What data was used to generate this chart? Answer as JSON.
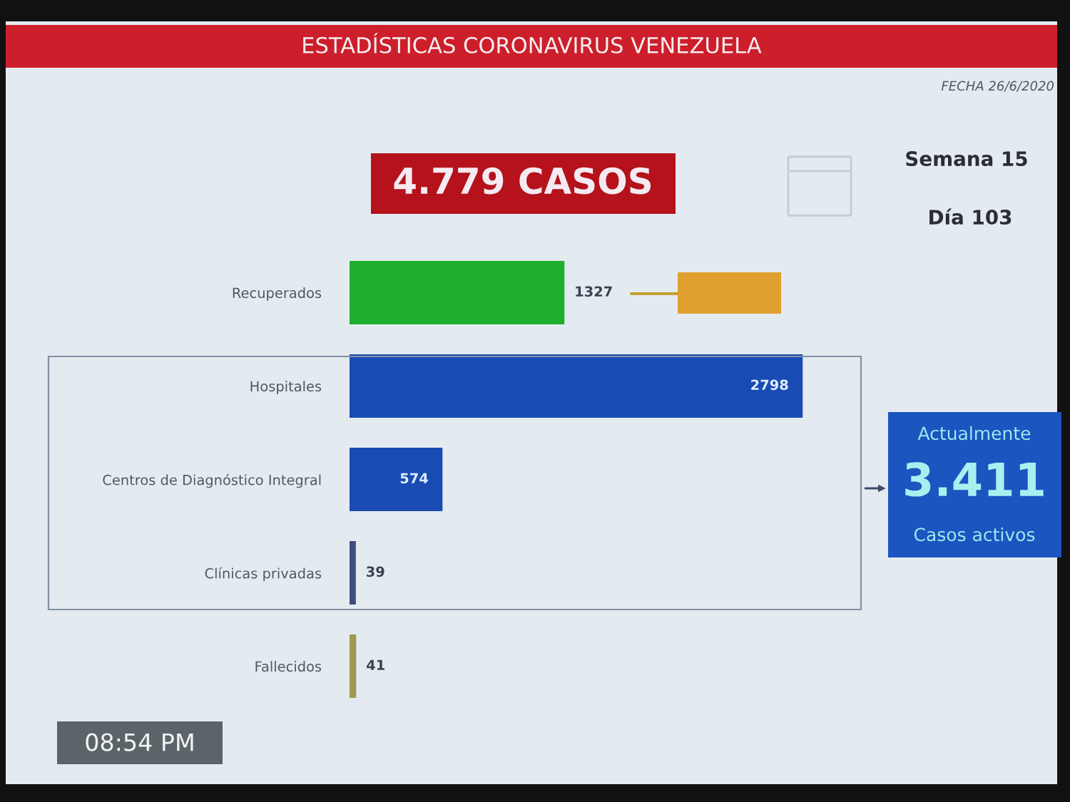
{
  "chart_data": {
    "type": "bar",
    "orientation": "horizontal",
    "title": "ESTADÍSTICAS CORONAVIRUS VENEZUELA",
    "categories": [
      "Recuperados",
      "Hospitales",
      "Centros de Diagnóstico Integral",
      "Clínicas privadas",
      "Fallecidos"
    ],
    "values": [
      1327,
      2798,
      574,
      39,
      41
    ],
    "colors": [
      "#1fae2e",
      "#1a4bb5",
      "#1a4bb5",
      "#3d4f7a",
      "#a09a50"
    ],
    "data_labels": true,
    "tick_labels": "y",
    "annotations": [
      "FECHA 26/6/2020",
      "4.779 CASOS",
      "Semana 15",
      "Día 103",
      "Actualmente",
      "3.411",
      "Casos activos",
      "08:54 PM"
    ]
  }
}
